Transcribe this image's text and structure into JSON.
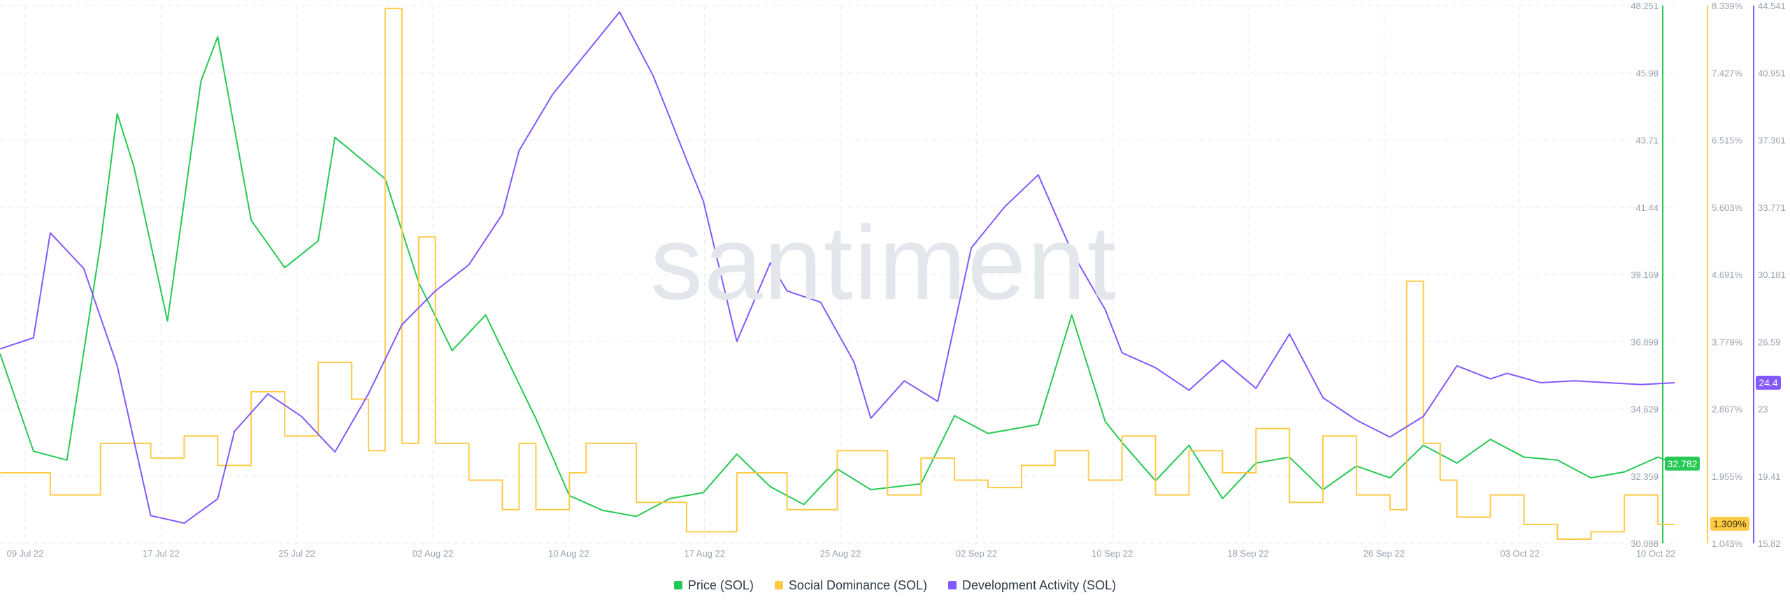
{
  "watermark": "santiment",
  "colors": {
    "price": "#26c953",
    "social": "#ffcb47",
    "dev": "#8358ff",
    "grid": "#e6e9ee",
    "tick": "#9aa3ad"
  },
  "chart_data": {
    "type": "line",
    "x_ticks": [
      "09 Jul 22",
      "17 Jul 22",
      "25 Jul 22",
      "02 Aug 22",
      "10 Aug 22",
      "17 Aug 22",
      "25 Aug 22",
      "02 Sep 22",
      "10 Sep 22",
      "18 Sep 22",
      "26 Sep 22",
      "03 Oct 22",
      "10 Oct 22"
    ],
    "axes": {
      "price": {
        "ticks": [
          "48.251",
          "45.98",
          "43.71",
          "41.44",
          "39.169",
          "36.899",
          "34.629",
          "32.359",
          "30.088"
        ],
        "range": [
          30.088,
          48.251
        ]
      },
      "social": {
        "ticks": [
          "8.339%",
          "7.427%",
          "6.515%",
          "5.603%",
          "4.691%",
          "3.779%",
          "2.867%",
          "1.955%",
          "1.043%"
        ],
        "range": [
          1.043,
          8.339
        ]
      },
      "dev": {
        "ticks": [
          "44.541",
          "40.951",
          "37.361",
          "33.771",
          "30.181",
          "26.59",
          "23",
          "19.41",
          "15.82"
        ],
        "range": [
          15.82,
          44.541
        ]
      }
    },
    "last_values": {
      "price": "32.782",
      "social": "1.309%",
      "dev": "24.4"
    },
    "series": [
      {
        "name": "Price (SOL)",
        "axis": "price",
        "x": [
          0,
          2,
          4,
          6,
          7,
          8,
          10,
          12,
          13,
          15,
          17,
          19,
          20,
          23,
          25,
          27,
          29,
          32,
          34,
          36,
          38,
          40,
          42,
          44,
          46,
          48,
          50,
          52,
          55,
          57,
          59,
          62,
          64,
          66,
          67,
          69,
          71,
          73,
          75,
          77,
          79,
          81,
          83,
          85,
          87,
          89,
          91,
          93,
          95,
          97,
          99,
          100
        ],
        "values": [
          36.5,
          33.2,
          32.9,
          40.2,
          44.6,
          42.8,
          37.6,
          45.7,
          47.2,
          41.0,
          39.4,
          40.3,
          43.8,
          42.4,
          38.9,
          36.6,
          37.8,
          34.3,
          31.7,
          31.2,
          31.0,
          31.6,
          31.8,
          33.1,
          32.0,
          31.4,
          32.6,
          31.9,
          32.1,
          34.4,
          33.8,
          34.1,
          37.8,
          34.2,
          33.5,
          32.2,
          33.4,
          31.6,
          32.8,
          33.0,
          31.9,
          32.7,
          32.3,
          33.4,
          32.8,
          33.6,
          33.0,
          32.9,
          32.3,
          32.5,
          33.0,
          32.8
        ]
      },
      {
        "name": "Social Dominance (SOL)",
        "axis": "social",
        "x": [
          0,
          3,
          6,
          9,
          11,
          13,
          15,
          17,
          19,
          21,
          22,
          23,
          24,
          25,
          26,
          28,
          30,
          31,
          32,
          34,
          35,
          38,
          41,
          44,
          47,
          50,
          53,
          55,
          57,
          59,
          61,
          63,
          65,
          67,
          69,
          71,
          73,
          75,
          77,
          79,
          81,
          83,
          84,
          85,
          86,
          87,
          89,
          91,
          93,
          95,
          97,
          99,
          100
        ],
        "values": [
          2.0,
          1.7,
          2.4,
          2.2,
          2.5,
          2.1,
          3.1,
          2.5,
          3.5,
          3.0,
          2.3,
          8.3,
          2.4,
          5.2,
          2.4,
          1.9,
          1.5,
          2.4,
          1.5,
          2.0,
          2.4,
          1.6,
          1.2,
          2.0,
          1.5,
          2.3,
          1.7,
          2.2,
          1.9,
          1.8,
          2.1,
          2.3,
          1.9,
          2.5,
          1.7,
          2.3,
          2.0,
          2.6,
          1.6,
          2.5,
          1.7,
          1.5,
          4.6,
          2.4,
          1.9,
          1.4,
          1.7,
          1.3,
          1.1,
          1.2,
          1.7,
          1.3,
          1.3
        ]
      },
      {
        "name": "Development Activity (SOL)",
        "axis": "dev",
        "x": [
          0,
          2,
          3,
          5,
          7,
          9,
          11,
          13,
          14,
          16,
          18,
          20,
          22,
          24,
          26,
          28,
          30,
          31,
          33,
          35,
          37,
          39,
          41,
          42,
          44,
          46,
          47,
          49,
          51,
          52,
          54,
          56,
          58,
          60,
          62,
          64,
          66,
          67,
          69,
          71,
          73,
          75,
          77,
          79,
          81,
          83,
          85,
          87,
          89,
          90,
          92,
          94,
          96,
          98,
          100
        ],
        "values": [
          26.2,
          26.8,
          32.4,
          30.5,
          25.3,
          17.3,
          16.9,
          18.2,
          21.8,
          23.8,
          22.6,
          20.7,
          23.8,
          27.5,
          29.3,
          30.7,
          33.4,
          36.8,
          39.8,
          42.0,
          44.2,
          40.8,
          36.3,
          34.1,
          26.6,
          30.8,
          29.3,
          28.7,
          25.5,
          22.5,
          24.5,
          23.4,
          31.6,
          33.8,
          35.5,
          31.4,
          28.3,
          26.0,
          25.2,
          24.0,
          25.6,
          24.1,
          27.0,
          23.6,
          22.4,
          21.5,
          22.6,
          25.3,
          24.6,
          24.9,
          24.4,
          24.5,
          24.4,
          24.3,
          24.4
        ]
      }
    ],
    "grid": true,
    "legend_position": "bottom-center"
  },
  "legend": [
    {
      "label": "Price (SOL)",
      "color": "#26c953"
    },
    {
      "label": "Social Dominance (SOL)",
      "color": "#ffcb47"
    },
    {
      "label": "Development Activity (SOL)",
      "color": "#8358ff"
    }
  ]
}
